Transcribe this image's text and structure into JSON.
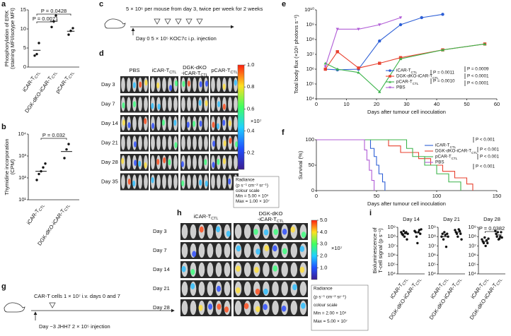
{
  "panels": {
    "letters": [
      "a",
      "b",
      "c",
      "d",
      "e",
      "f",
      "g",
      "h",
      "i"
    ],
    "c": {
      "dose": "5 × 10⁶ per mouse from day 3, twice per week for 2 weeks",
      "day": "Day 0 5 × 10⁵ KOC7c i.p. injection"
    },
    "d": {
      "columns": [
        "PBS",
        "iCAR-TCTL",
        "DGK-dKO-iCAR-TCTL",
        "pCAR-TCTL"
      ],
      "rows": [
        "Day 3",
        "Day 7",
        "Day 14",
        "Day 21",
        "Day 28",
        "Day 35"
      ],
      "colorbar": {
        "clim": [
          0.05,
          1
        ],
        "ticks": [
          0.2,
          0.4,
          0.6,
          0.8,
          {
            "value": 1,
            "label": "1.0"
          }
        ],
        "multiplier": "×10⁷",
        "legend": [
          "Radiance",
          "(p s⁻¹ cm⁻² sr⁻¹)",
          "colour scale",
          "Min = 5.00 × 10⁵",
          "Max = 1.00 × 10⁷"
        ]
      }
    },
    "g": {
      "cells": "CAR-T cells 1 × 10⁷ i.v. days 0 and 7",
      "day": "Day −3 JHH7 2 × 10⁵ injection"
    },
    "h": {
      "columns": [
        "iCAR-TCTL",
        "DGK-dKO-iCAR-TCTL"
      ],
      "rows": [
        "Day 3",
        "Day 7",
        "Day 14",
        "Day 21",
        "Day 28"
      ],
      "colorbar": {
        "clim": [
          0.02,
          5
        ],
        "ticks": [
          {
            "value": 1,
            "label": "1.0"
          },
          {
            "value": 2,
            "label": "2.0"
          },
          {
            "value": 3,
            "label": "3.0"
          },
          {
            "value": 4,
            "label": "4.0"
          },
          {
            "value": 5,
            "label": "5.0"
          }
        ],
        "multiplier": "×10⁷",
        "legend": [
          "Radiance",
          "(p s⁻¹ cm⁻² sr⁻¹)",
          "colour scale",
          "Min = 2.00 × 10⁵",
          "Max = 5.00 × 10⁷"
        ]
      }
    }
  },
  "chart_data": [
    {
      "type": "dot",
      "ylabel": [
        "Phosphorylation of ERK",
        "(staining MFI/isotype MFI)"
      ],
      "categories": [
        "iCAR-TCTL",
        "DGK-dKO-iCAR-TCTL",
        "pCAR-TCTL"
      ],
      "values": [
        [
          3,
          3.4,
          6.3
        ],
        [
          10.5,
          12,
          13.5
        ],
        [
          8.5,
          9.5,
          10.2
        ]
      ],
      "means": [
        4.4,
        12,
        9.4
      ],
      "ylim": [
        0,
        15
      ],
      "yticks": [
        0,
        5,
        10,
        15
      ],
      "color": "#111111",
      "annotations": [
        {
          "text": "P = 0.0428",
          "between": [
            0,
            2
          ]
        },
        {
          "text": "P = 0.0071",
          "between": [
            0,
            1
          ]
        }
      ]
    },
    {
      "type": "dot",
      "yscale": "log",
      "ylabel": [
        "Thymidine incorporation",
        "(CPM)"
      ],
      "categories": [
        "iCAR-TCTL",
        "DGK-dKO-iCAR-TCTL"
      ],
      "values": [
        [
          80,
          150,
          200,
          300,
          450
        ],
        [
          800,
          2000,
          3500
        ]
      ],
      "means": [
        200,
        1600
      ],
      "ylim": [
        10,
        10000
      ],
      "yticks": [
        {
          "value": 10,
          "label": "10¹"
        },
        {
          "value": 100,
          "label": "10²"
        },
        {
          "value": 1000,
          "label": "10³"
        },
        {
          "value": 10000,
          "label": "10⁴"
        }
      ],
      "color": "#111111",
      "annotations": [
        {
          "text": "P = 0.032",
          "between": [
            0,
            1
          ]
        }
      ]
    },
    {
      "type": "line",
      "yscale": "log",
      "ylabel": [
        "Total body flux (×10⁶ photons s⁻¹)"
      ],
      "xlabel": "Days after tumour cell inoculation",
      "xlim": [
        0,
        60
      ],
      "xticks": [
        0,
        10,
        20,
        30,
        40,
        50,
        60
      ],
      "ylim": [
        10000,
        10000000000
      ],
      "yticks": [
        {
          "value": 10000,
          "label": "10⁴"
        },
        {
          "value": 100000,
          "label": "10⁵"
        },
        {
          "value": 1000000,
          "label": "10⁶"
        },
        {
          "value": 10000000,
          "label": "10⁷"
        },
        {
          "value": 100000000,
          "label": "10⁸"
        },
        {
          "value": 1000000000,
          "label": "10⁹"
        },
        {
          "value": 10000000000,
          "label": "10¹⁰"
        }
      ],
      "series": [
        {
          "name": "iCAR-TCTL",
          "color": "#2d5fd6",
          "marker": "circle",
          "x": [
            3,
            7,
            14,
            21,
            28,
            35,
            42
          ],
          "values": [
            1000000,
            900000,
            1000000,
            80000000,
            1000000000,
            3000000000,
            5000000000
          ]
        },
        {
          "name": "DGK-dKO-iCAR-TCTL",
          "color": "#e8412f",
          "marker": "square",
          "x": [
            3,
            7,
            14,
            21,
            28,
            42,
            56
          ],
          "values": [
            1000000,
            15000000,
            1200000,
            2500000,
            6000000,
            20000000,
            50000000
          ]
        },
        {
          "name": "pCAR-TCTL",
          "color": "#3cb44b",
          "marker": "triangle",
          "x": [
            3,
            7,
            14,
            21,
            28,
            42,
            56
          ],
          "values": [
            2500000,
            1000000,
            600000,
            30000,
            5000000,
            20000000,
            50000000
          ]
        },
        {
          "name": "PBS",
          "color": "#b05cd6",
          "marker": "triangle-down",
          "x": [
            3,
            7,
            14,
            21,
            28
          ],
          "values": [
            1500000,
            500000000,
            500000000,
            1000000000,
            3000000000
          ]
        }
      ],
      "p_values": [
        "P = 0.0011",
        "P = 0.0010",
        "P = 0.0009",
        "P < 0.0001",
        "P < 0.0001"
      ]
    },
    {
      "type": "step",
      "ylabel": [
        "Survival (%)"
      ],
      "xlabel": "Days after tumour cell inoculation",
      "xlim": [
        0,
        150
      ],
      "xticks": [
        0,
        50,
        100,
        150
      ],
      "ylim": [
        0,
        100
      ],
      "yticks": [
        0,
        50,
        100
      ],
      "series": [
        {
          "name": "iCAR-TCTL",
          "color": "#2d5fd6",
          "x": [
            0,
            45,
            48,
            50,
            52,
            55,
            57
          ],
          "values": [
            100,
            83,
            67,
            50,
            33,
            17,
            0
          ]
        },
        {
          "name": "DGK-dKO-iCAR-TCTL",
          "color": "#e8412f",
          "x": [
            0,
            60,
            70,
            85,
            95,
            105,
            115,
            125,
            130
          ],
          "values": [
            100,
            88,
            75,
            63,
            50,
            38,
            25,
            13,
            0
          ]
        },
        {
          "name": "pCAR-TCTL",
          "color": "#3cb44b",
          "x": [
            0,
            75,
            80,
            90,
            100,
            110,
            120
          ],
          "values": [
            100,
            83,
            67,
            50,
            33,
            17,
            0
          ]
        },
        {
          "name": "PBS",
          "color": "#b05cd6",
          "x": [
            0,
            40,
            42,
            44,
            46,
            48
          ],
          "values": [
            100,
            80,
            60,
            40,
            20,
            0
          ]
        }
      ],
      "p_values": [
        "P < 0.001",
        "P < 0.001",
        "P < 0.001",
        "P < 0.001"
      ]
    },
    {
      "type": "dot",
      "yscale": "log",
      "title": "Day 14",
      "ylabel": [
        "Bioluminescence of",
        "T-cell signal (p s⁻¹)"
      ],
      "categories": [
        "iCAR-TCTL",
        "DGK-dKO-iCAR-TCTL"
      ],
      "values": [
        [
          300000000,
          200000000,
          150000000,
          400000000,
          100000000,
          250000000,
          300000000,
          50000000,
          200000000
        ],
        [
          400000000,
          300000000,
          100000000,
          20000000,
          300000000,
          500000000,
          200000000,
          600000000
        ]
      ],
      "means": [
        200000000,
        250000000
      ],
      "ylim": [
        10000,
        1000000000
      ],
      "yticks": [
        {
          "value": 10000,
          "label": "10⁴"
        },
        {
          "value": 100000,
          "label": "10⁵"
        },
        {
          "value": 1000000,
          "label": "10⁶"
        },
        {
          "value": 10000000,
          "label": "10⁷"
        },
        {
          "value": 100000000,
          "label": "10⁸"
        },
        {
          "value": 1000000000,
          "label": "10⁹"
        }
      ],
      "color": "#111111"
    },
    {
      "type": "dot",
      "yscale": "log",
      "title": "Day 21",
      "categories": [
        "iCAR-TCTL",
        "DGK-dKO-iCAR-TCTL"
      ],
      "values": [
        [
          100000000,
          200000000,
          50000000,
          300000000,
          150000000,
          8000000,
          200000000,
          100000000
        ],
        [
          500000000,
          300000000,
          200000000,
          100000000,
          600000000,
          400000000,
          200000000,
          50000000
        ]
      ],
      "means": [
        100000000,
        300000000
      ],
      "ylim": [
        10000,
        1000000000
      ],
      "yticks": [
        {
          "value": 10000,
          "label": "10⁴"
        },
        {
          "value": 100000,
          "label": "10⁵"
        },
        {
          "value": 1000000,
          "label": "10⁶"
        },
        {
          "value": 10000000,
          "label": "10⁷"
        },
        {
          "value": 100000000,
          "label": "10⁸"
        },
        {
          "value": 1000000000,
          "label": "10⁹"
        }
      ],
      "color": "#111111"
    },
    {
      "type": "dot",
      "yscale": "log",
      "title": "Day 28",
      "categories": [
        "iCAR-TCTL",
        "DGK-dKO-iCAR-TCTL"
      ],
      "values": [
        [
          50000000,
          30000000,
          20000000,
          80000000,
          10000000,
          40000000,
          20000000,
          60000000
        ],
        [
          400000000,
          200000000,
          100000000,
          300000000,
          50000000,
          60000000,
          100000000,
          300000000,
          80000000
        ]
      ],
      "means": [
        30000000,
        150000000
      ],
      "ylim": [
        10000,
        1000000000
      ],
      "yticks": [
        {
          "value": 10000,
          "label": "10⁴"
        },
        {
          "value": 100000,
          "label": "10⁵"
        },
        {
          "value": 1000000,
          "label": "10⁶"
        },
        {
          "value": 10000000,
          "label": "10⁷"
        },
        {
          "value": 100000000,
          "label": "10⁸"
        },
        {
          "value": 1000000000,
          "label": "10⁹"
        }
      ],
      "color": "#111111",
      "annotations": [
        {
          "text": "P = 0.0382",
          "between": [
            0,
            1
          ]
        }
      ]
    }
  ]
}
